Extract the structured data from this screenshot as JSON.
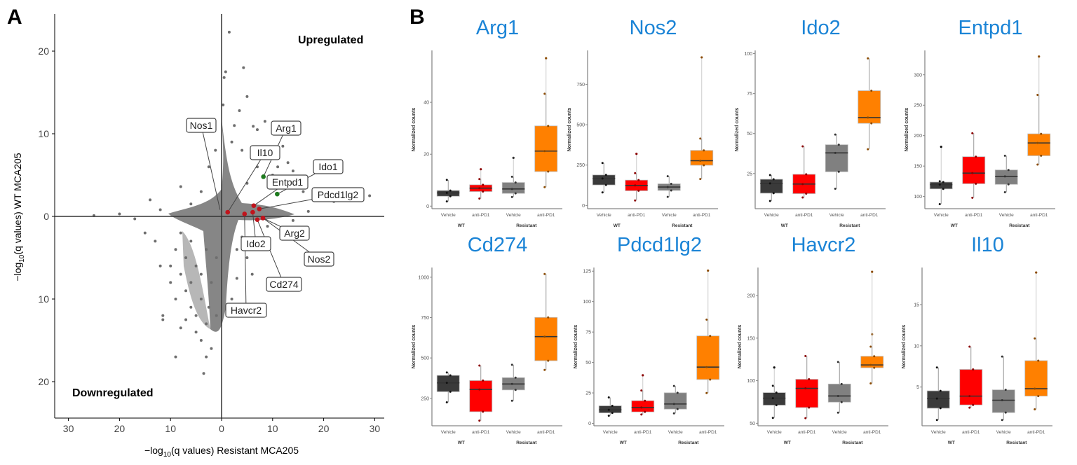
{
  "panel_labels": {
    "a": "A",
    "b": "B"
  },
  "chart_data": [
    {
      "type": "scatter",
      "panel": "A",
      "xlabel": {
        "prefix": "−log",
        "sub": "10",
        "suffix": "(q values)  Resistant MCA205"
      },
      "ylabel": {
        "prefix": "−log",
        "sub": "10",
        "suffix": "(q values)  WT MCA205"
      },
      "xlim": [
        -30,
        32
      ],
      "ylim": [
        -24,
        24
      ],
      "x_ticks": [
        {
          "v": -30,
          "label": "30"
        },
        {
          "v": -20,
          "label": "20"
        },
        {
          "v": -10,
          "label": "10"
        },
        {
          "v": 0,
          "label": "0"
        },
        {
          "v": 10,
          "label": "10"
        },
        {
          "v": 20,
          "label": "20"
        },
        {
          "v": 30,
          "label": "30"
        }
      ],
      "y_ticks": [
        {
          "v": 20,
          "label": "20"
        },
        {
          "v": 10,
          "label": "10"
        },
        {
          "v": 0,
          "label": "0"
        },
        {
          "v": -10,
          "label": "10"
        },
        {
          "v": -20,
          "label": "20"
        }
      ],
      "annotations": {
        "up": "Upregulated",
        "down": "Downregulated"
      },
      "colors": {
        "background_points": "#6e6e6e",
        "highlight_red": "#c0141c",
        "highlight_green": "#1e7a1e"
      },
      "background_points": [
        [
          1.5,
          22.3
        ],
        [
          0.8,
          17.5
        ],
        [
          0.5,
          16.8
        ],
        [
          4.3,
          18
        ],
        [
          0.3,
          13.5
        ],
        [
          3.5,
          12.8
        ],
        [
          5,
          14.5
        ],
        [
          2.5,
          11
        ],
        [
          7,
          10.5
        ],
        [
          8.5,
          11.5
        ],
        [
          6.2,
          10.9
        ],
        [
          12,
          8.5
        ],
        [
          13,
          6.5
        ],
        [
          11,
          6
        ],
        [
          14,
          5.5
        ],
        [
          15.5,
          4
        ],
        [
          16,
          3
        ],
        [
          18,
          2.5
        ],
        [
          20,
          2
        ],
        [
          22,
          1.8
        ],
        [
          29,
          2.5
        ],
        [
          9,
          7
        ],
        [
          10,
          5
        ],
        [
          7,
          6
        ],
        [
          4,
          8
        ],
        [
          2,
          9
        ],
        [
          5,
          4
        ],
        [
          17,
          0.6
        ],
        [
          14,
          -0.5
        ],
        [
          -8,
          3.6
        ],
        [
          -14,
          2
        ],
        [
          -12,
          0.8
        ],
        [
          -20,
          0.3
        ],
        [
          -25,
          0.1
        ],
        [
          -6,
          1.5
        ],
        [
          -4,
          3
        ],
        [
          -17,
          -0.3
        ],
        [
          -2.5,
          6
        ],
        [
          -1.2,
          8
        ],
        [
          -11.5,
          -12
        ],
        [
          -11.5,
          -12.5
        ],
        [
          -9,
          -17
        ],
        [
          -3.5,
          -19
        ],
        [
          -8,
          -13.5
        ],
        [
          -6,
          -11
        ],
        [
          -4,
          -10
        ],
        [
          -10,
          -8
        ],
        [
          -8,
          -7
        ],
        [
          -12,
          -6
        ],
        [
          -5,
          -6
        ],
        [
          -2,
          -8
        ],
        [
          -3,
          -13
        ],
        [
          -1,
          -12
        ],
        [
          -7,
          -9
        ],
        [
          -9,
          -4
        ],
        [
          -13,
          -3
        ],
        [
          -6,
          -3
        ],
        [
          -15,
          -2
        ],
        [
          -4,
          -15
        ],
        [
          -2,
          -16
        ],
        [
          -5,
          -14
        ],
        [
          -1,
          -5
        ],
        [
          -7,
          -5
        ],
        [
          -3,
          -4
        ],
        [
          -6,
          -8
        ],
        [
          -9,
          -10
        ],
        [
          -4,
          -7
        ],
        [
          -2.5,
          -11
        ],
        [
          -5,
          -12
        ],
        [
          -7,
          -12.5
        ],
        [
          -10,
          -6
        ],
        [
          -8,
          -2
        ],
        [
          -3,
          -17
        ],
        [
          5,
          -5
        ],
        [
          8,
          -3
        ],
        [
          12,
          -1.5
        ],
        [
          3,
          -4
        ],
        [
          6,
          -7
        ],
        [
          2,
          -10
        ],
        [
          4,
          -2.5
        ],
        [
          9,
          -1.2
        ],
        [
          3,
          -7.5
        ]
      ],
      "highlighted_genes": [
        {
          "label": "Nos1",
          "x": -0.3,
          "y": 0.8,
          "color": "none"
        },
        {
          "label": "Arg1",
          "x": 8.2,
          "y": 4.8,
          "color": "green"
        },
        {
          "label": "Il10",
          "x": 1.2,
          "y": 0.5,
          "color": "red"
        },
        {
          "label": "Ido1",
          "x": 10.9,
          "y": 2.7,
          "color": "green"
        },
        {
          "label": "Entpd1",
          "x": 6.3,
          "y": 1.3,
          "color": "red"
        },
        {
          "label": "Pdcd1lg2",
          "x": 7.4,
          "y": 0.9,
          "color": "red"
        },
        {
          "label": "Arg2",
          "x": 8.1,
          "y": -0.2,
          "color": "red"
        },
        {
          "label": "Nos2",
          "x": 8.1,
          "y": -0.2,
          "color": "red"
        },
        {
          "label": "Ido2",
          "x": 6.1,
          "y": 0.5,
          "color": "red"
        },
        {
          "label": "Cd274",
          "x": 7.0,
          "y": -0.4,
          "color": "red"
        },
        {
          "label": "Havcr2",
          "x": 4.5,
          "y": 0.3,
          "color": "red"
        }
      ]
    },
    {
      "type": "box",
      "panel": "B",
      "ylabel": "Normalized counts",
      "categories": [
        "Vehicle",
        "anti-PD1",
        "Vehicle",
        "anti-PD1"
      ],
      "groups": [
        "WT",
        "Resistant"
      ],
      "colors": [
        "#3a3a3a",
        "#ff0000",
        "#808080",
        "#ff8000"
      ],
      "point_colors": [
        "#111111",
        "#8b0000",
        "#333333",
        "#8b4a00"
      ],
      "genes": [
        {
          "title": "Arg1",
          "ylim": [
            -1,
            60
          ],
          "ticks": [
            0,
            20,
            40
          ],
          "boxes": [
            {
              "min": 1.8,
              "q1": 3.8,
              "median": 5.1,
              "q3": 6.0,
              "max": 10.1,
              "outliers": []
            },
            {
              "min": 2.9,
              "q1": 5.6,
              "median": 6.9,
              "q3": 8.2,
              "max": 10.4,
              "outliers": [
                14.2
              ]
            },
            {
              "min": 3.5,
              "q1": 4.9,
              "median": 6.6,
              "q3": 9.1,
              "max": 11.3,
              "outliers": [
                18.6
              ]
            },
            {
              "min": 7.3,
              "q1": 13.3,
              "median": 21.2,
              "q3": 30.9,
              "max": 43.3,
              "outliers": [
                57
              ]
            }
          ]
        },
        {
          "title": "Nos2",
          "ylim": [
            -20,
            960
          ],
          "ticks": [
            0,
            250,
            500,
            750
          ],
          "boxes": [
            {
              "min": 81,
              "q1": 127,
              "median": 167,
              "q3": 189,
              "max": 263,
              "outliers": []
            },
            {
              "min": 31,
              "q1": 91,
              "median": 124,
              "q3": 157,
              "max": 200,
              "outliers": [
                320
              ]
            },
            {
              "min": 53,
              "q1": 93,
              "median": 114,
              "q3": 134,
              "max": 181,
              "outliers": []
            },
            {
              "min": 164,
              "q1": 249,
              "median": 277,
              "q3": 341,
              "max": 414,
              "outliers": [
                917
              ]
            }
          ]
        },
        {
          "title": "Ido2",
          "ylim": [
            3,
            102
          ],
          "ticks": [
            25,
            50,
            75,
            100
          ],
          "boxes": [
            {
              "min": 7.8,
              "q1": 12.7,
              "median": 18.8,
              "q3": 21.4,
              "max": 24,
              "outliers": []
            },
            {
              "min": 10,
              "q1": 12.4,
              "median": 18.4,
              "q3": 24.5,
              "max": 42,
              "outliers": []
            },
            {
              "min": 15.5,
              "q1": 26.1,
              "median": 37.9,
              "q3": 43.0,
              "max": 49.4,
              "outliers": []
            },
            {
              "min": 40.2,
              "q1": 56.4,
              "median": 60,
              "q3": 76.8,
              "max": 97,
              "outliers": []
            }
          ]
        },
        {
          "title": "Entpd1",
          "ylim": [
            80,
            340
          ],
          "ticks": [
            100,
            150,
            200,
            250,
            300
          ],
          "boxes": [
            {
              "min": 87.5,
              "q1": 112.5,
              "median": 119.5,
              "q3": 123.7,
              "max": 125,
              "outliers": [
                181.7
              ]
            },
            {
              "min": 98,
              "q1": 121,
              "median": 138.5,
              "q3": 165.4,
              "max": 204,
              "outliers": []
            },
            {
              "min": 107,
              "q1": 120,
              "median": 133,
              "q3": 143.6,
              "max": 167,
              "outliers": []
            },
            {
              "min": 152.5,
              "q1": 167,
              "median": 188,
              "q3": 203,
              "max": 267,
              "outliers": [
                330
              ]
            }
          ]
        },
        {
          "title": "Cd274",
          "ylim": [
            80,
            1060
          ],
          "ticks": [
            250,
            500,
            750,
            1000
          ],
          "boxes": [
            {
              "min": 225,
              "q1": 291,
              "median": 346,
              "q3": 392,
              "max": 410,
              "outliers": []
            },
            {
              "min": 112,
              "q1": 167,
              "median": 305,
              "q3": 360,
              "max": 453,
              "outliers": []
            },
            {
              "min": 235,
              "q1": 302,
              "median": 339,
              "q3": 378,
              "max": 458,
              "outliers": []
            },
            {
              "min": 426,
              "q1": 483,
              "median": 632,
              "q3": 751,
              "max": 1020,
              "outliers": []
            }
          ]
        },
        {
          "title": "Pdcd1lg2",
          "ylim": [
            -2,
            128
          ],
          "ticks": [
            0,
            25,
            50,
            75,
            100,
            125
          ],
          "boxes": [
            {
              "min": 6.3,
              "q1": 8.6,
              "median": 11.1,
              "q3": 14.4,
              "max": 21.3,
              "outliers": []
            },
            {
              "min": 7.3,
              "q1": 9.4,
              "median": 13,
              "q3": 18.6,
              "max": 27,
              "outliers": [
                39.5
              ]
            },
            {
              "min": 8.2,
              "q1": 11.7,
              "median": 15.9,
              "q3": 25.1,
              "max": 30.7,
              "outliers": []
            },
            {
              "min": 24.9,
              "q1": 36,
              "median": 46.2,
              "q3": 71.8,
              "max": 85.2,
              "outliers": [
                125.5
              ]
            }
          ]
        },
        {
          "title": "Havcr2",
          "ylim": [
            47,
            233
          ],
          "ticks": [
            50,
            100,
            150,
            200
          ],
          "boxes": [
            {
              "min": 56.3,
              "q1": 71.2,
              "median": 79.4,
              "q3": 86,
              "max": 94,
              "outliers": [
                115.5
              ]
            },
            {
              "min": 56,
              "q1": 68.4,
              "median": 91,
              "q3": 101.7,
              "max": 129,
              "outliers": []
            },
            {
              "min": 62.4,
              "q1": 74.8,
              "median": 82,
              "q3": 96.1,
              "max": 122,
              "outliers": []
            },
            {
              "min": 96.8,
              "q1": 115.2,
              "median": 118.5,
              "q3": 128.7,
              "max": 140,
              "outliers": [
                154.5,
                228
              ]
            }
          ]
        },
        {
          "title": "Il10",
          "ylim": [
            0.3,
            19.5
          ],
          "ticks": [
            5,
            10,
            15
          ],
          "boxes": [
            {
              "min": 1.0,
              "q1": 2.43,
              "median": 3.6,
              "q3": 4.54,
              "max": 7.37,
              "outliers": []
            },
            {
              "min": 2.5,
              "q1": 2.83,
              "median": 3.9,
              "q3": 7.14,
              "max": 9.9,
              "outliers": []
            },
            {
              "min": 1.0,
              "q1": 1.9,
              "median": 3.4,
              "q3": 4.66,
              "max": 8.7,
              "outliers": []
            },
            {
              "min": 2.3,
              "q1": 3.9,
              "median": 4.8,
              "q3": 8.2,
              "max": 10.9,
              "outliers": [
                18.9
              ]
            }
          ]
        }
      ]
    }
  ]
}
